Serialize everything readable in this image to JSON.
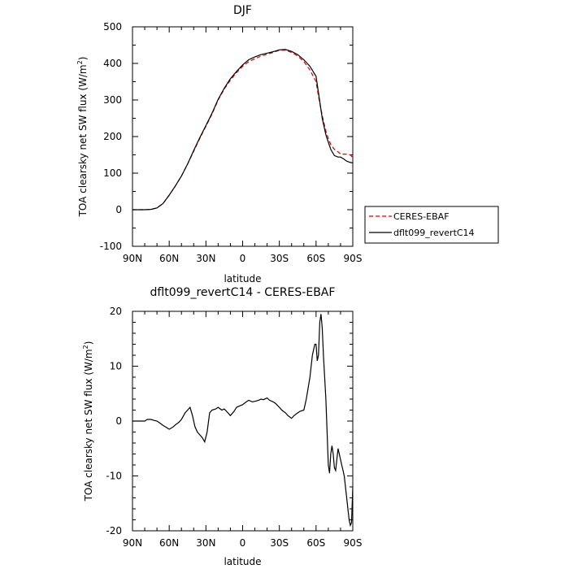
{
  "chart_data": [
    {
      "type": "line",
      "title": "DJF",
      "xlabel": "latitude",
      "ylabel": "TOA clearsky net SW flux (W/m",
      "ylabel_sup": "2",
      "ylabel_end": ")",
      "xlim": [
        90,
        -90
      ],
      "ylim": [
        -100,
        500
      ],
      "x_ticks": [
        {
          "value": 90,
          "label": "90N"
        },
        {
          "value": 60,
          "label": "60N"
        },
        {
          "value": 30,
          "label": "30N"
        },
        {
          "value": 0,
          "label": "0"
        },
        {
          "value": -30,
          "label": "30S"
        },
        {
          "value": -60,
          "label": "60S"
        },
        {
          "value": -90,
          "label": "90S"
        }
      ],
      "y_ticks": [
        -100,
        0,
        100,
        200,
        300,
        400,
        500
      ],
      "legend": "outside-right",
      "series": [
        {
          "name": "CERES-EBAF",
          "color": "#dd0000",
          "dash": "dashed",
          "x": [
            90,
            85,
            80,
            75,
            70,
            65,
            60,
            55,
            50,
            45,
            40,
            35,
            30,
            25,
            20,
            15,
            10,
            5,
            0,
            -5,
            -10,
            -15,
            -20,
            -25,
            -30,
            -35,
            -40,
            -45,
            -50,
            -55,
            -60,
            -62,
            -65,
            -68,
            -70,
            -72,
            -75,
            -78,
            -80,
            -82,
            -85,
            -88,
            -90
          ],
          "y": [
            0,
            0,
            0,
            1,
            5,
            17,
            40,
            65,
            92,
            125,
            160,
            195,
            228,
            262,
            300,
            330,
            354,
            375,
            392,
            405,
            413,
            420,
            425,
            430,
            436,
            436,
            430,
            420,
            405,
            382,
            350,
            310,
            258,
            215,
            195,
            178,
            165,
            158,
            152,
            152,
            152,
            150,
            142
          ]
        },
        {
          "name": "dflt099_revertC14",
          "color": "#000000",
          "dash": "solid",
          "x": [
            90,
            85,
            80,
            75,
            70,
            65,
            60,
            55,
            50,
            45,
            40,
            35,
            30,
            25,
            20,
            15,
            10,
            5,
            0,
            -5,
            -10,
            -15,
            -20,
            -25,
            -30,
            -35,
            -40,
            -45,
            -50,
            -55,
            -60,
            -62,
            -65,
            -68,
            -70,
            -72,
            -75,
            -78,
            -80,
            -82,
            -85,
            -88,
            -90
          ],
          "y": [
            0,
            0,
            0,
            1,
            5,
            17,
            40,
            65,
            92,
            125,
            162,
            197,
            230,
            264,
            302,
            332,
            358,
            378,
            396,
            410,
            418,
            424,
            428,
            432,
            437,
            438,
            433,
            424,
            410,
            392,
            365,
            320,
            250,
            205,
            185,
            165,
            148,
            144,
            144,
            140,
            133,
            129,
            128
          ]
        }
      ]
    },
    {
      "type": "line",
      "title": "dflt099_revertC14 - CERES-EBAF",
      "xlabel": "latitude",
      "ylabel": "TOA clearsky net SW flux (W/m",
      "ylabel_sup": "2",
      "ylabel_end": ")",
      "xlim": [
        90,
        -90
      ],
      "ylim": [
        -20,
        20
      ],
      "x_ticks": [
        {
          "value": 90,
          "label": "90N"
        },
        {
          "value": 60,
          "label": "60N"
        },
        {
          "value": 30,
          "label": "30N"
        },
        {
          "value": 0,
          "label": "0"
        },
        {
          "value": -30,
          "label": "30S"
        },
        {
          "value": -60,
          "label": "60S"
        },
        {
          "value": -90,
          "label": "90S"
        }
      ],
      "y_ticks": [
        -20,
        -10,
        0,
        10,
        20
      ],
      "series": [
        {
          "name": "",
          "color": "#000000",
          "dash": "solid",
          "x": [
            90,
            85,
            80,
            78,
            75,
            72,
            70,
            68,
            65,
            62,
            60,
            57,
            55,
            52,
            50,
            47,
            45,
            43,
            41,
            39,
            37,
            35,
            33,
            31,
            29,
            27,
            25,
            22,
            20,
            17,
            15,
            12,
            10,
            7,
            5,
            2,
            0,
            -3,
            -5,
            -8,
            -10,
            -13,
            -15,
            -17,
            -20,
            -22,
            -25,
            -27,
            -30,
            -32,
            -35,
            -37,
            -40,
            -42,
            -45,
            -47,
            -50,
            -52,
            -55,
            -57,
            -59,
            -60,
            -61,
            -62,
            -63,
            -64,
            -65,
            -66,
            -67,
            -68,
            -69,
            -70,
            -71,
            -72,
            -73,
            -74,
            -75,
            -76,
            -77,
            -78,
            -79,
            -80,
            -81,
            -82,
            -83,
            -84,
            -85,
            -86,
            -87,
            -88,
            -89,
            -90
          ],
          "y": [
            0,
            0,
            0,
            0.3,
            0.3,
            0.1,
            0,
            -0.3,
            -0.8,
            -1.2,
            -1.5,
            -1.1,
            -0.7,
            -0.2,
            0.3,
            1.5,
            2.0,
            2.5,
            1.0,
            -1.0,
            -2.0,
            -2.5,
            -3.0,
            -3.8,
            -2.0,
            1.5,
            2.0,
            2.2,
            2.5,
            2.0,
            2.2,
            1.5,
            1.0,
            1.8,
            2.5,
            2.8,
            3.0,
            3.5,
            3.8,
            3.5,
            3.6,
            3.8,
            4.0,
            3.9,
            4.2,
            3.8,
            3.5,
            3.2,
            2.5,
            2.0,
            1.5,
            1.0,
            0.5,
            1.0,
            1.5,
            1.8,
            2.0,
            4.0,
            8.0,
            12.0,
            14.0,
            14.0,
            11.0,
            12.0,
            18.0,
            19.5,
            17.0,
            12.0,
            8.0,
            4.0,
            -2.0,
            -8.0,
            -9.5,
            -6.0,
            -4.5,
            -6.0,
            -8.5,
            -9.0,
            -7.0,
            -5.0,
            -6.0,
            -7.0,
            -8.0,
            -9.0,
            -10.0,
            -12.0,
            -14.0,
            -16.0,
            -18.0,
            -19.0,
            -18.5,
            -12.0
          ]
        }
      ]
    }
  ]
}
